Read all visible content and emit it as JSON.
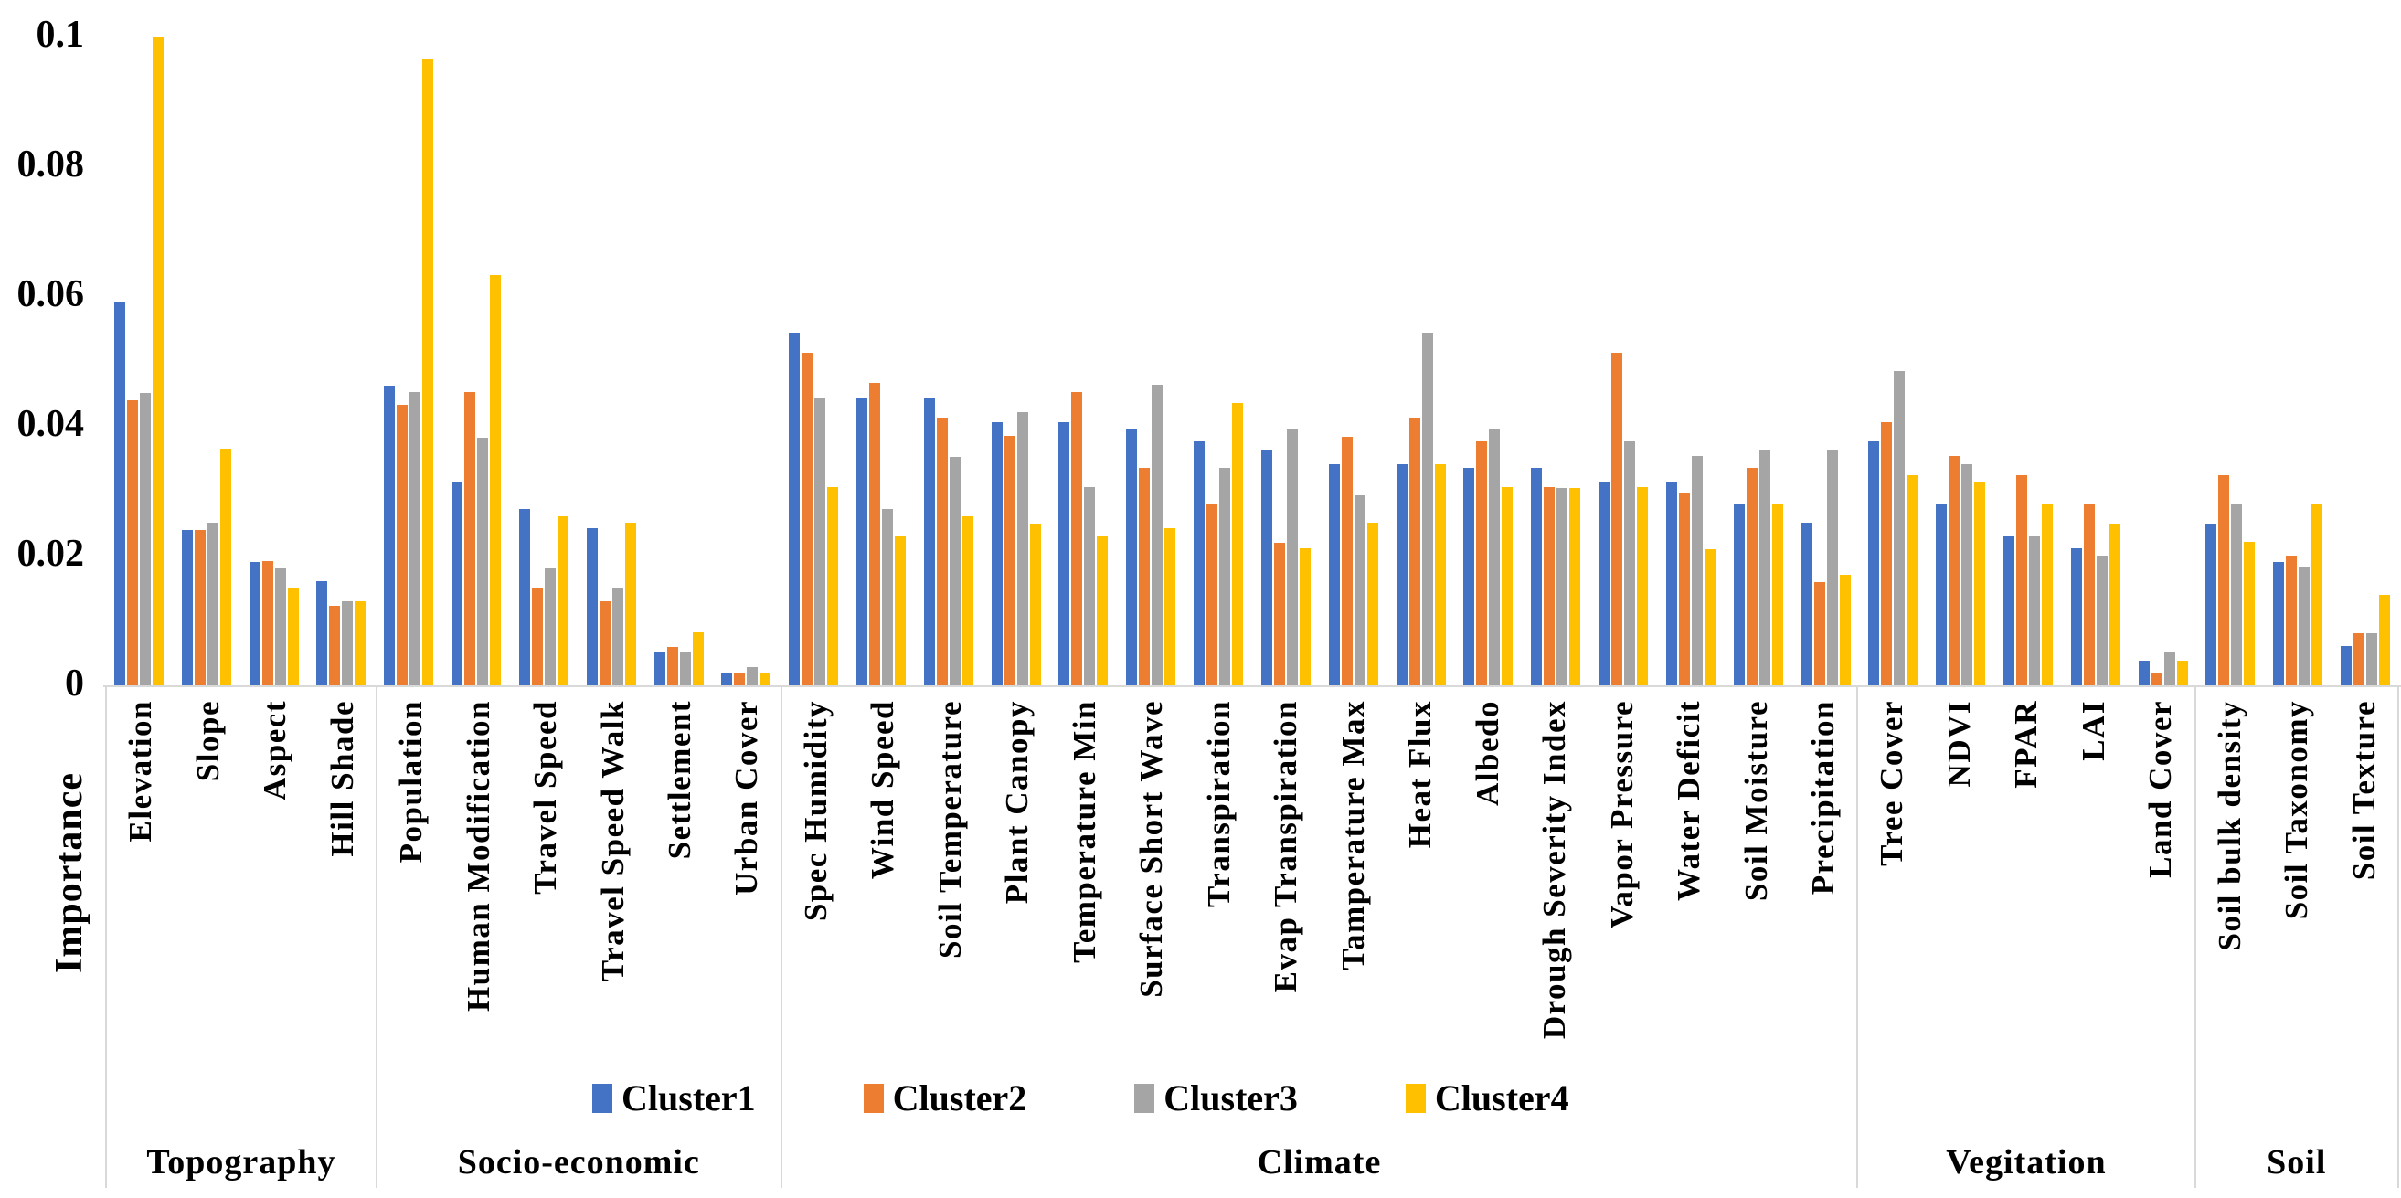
{
  "chart_data": {
    "type": "bar",
    "title": "",
    "xlabel": "",
    "ylabel": "Importance",
    "ylim": [
      0,
      0.1
    ],
    "grid": false,
    "legend_position": "bottom",
    "yticks": [
      {
        "label": "0.1",
        "value": 0.1
      },
      {
        "label": "0.08",
        "value": 0.08
      },
      {
        "label": "0.06",
        "value": 0.06
      },
      {
        "label": "0.04",
        "value": 0.04
      },
      {
        "label": "0.02",
        "value": 0.02
      },
      {
        "label": "0",
        "value": 0
      }
    ],
    "series_names": [
      "Cluster1",
      "Cluster2",
      "Cluster3",
      "Cluster4"
    ],
    "series_colors": [
      "#4472C4",
      "#ED7D31",
      "#A5A5A5",
      "#FFC000"
    ],
    "axis_line_color": "#D9D9D9",
    "groups": [
      {
        "label": "Topography",
        "variables": [
          {
            "name": "Elevation",
            "values": [
              0.059,
              0.044,
              0.045,
              0.1
            ]
          },
          {
            "name": "Slope",
            "values": [
              0.024,
              0.024,
              0.025,
              0.0365
            ]
          },
          {
            "name": "Aspect",
            "values": [
              0.019,
              0.0192,
              0.018,
              0.015
            ]
          },
          {
            "name": "Hill Shade",
            "values": [
              0.016,
              0.0122,
              0.013,
              0.013
            ]
          }
        ]
      },
      {
        "label": "Socio-economic",
        "variables": [
          {
            "name": "Population",
            "values": [
              0.0462,
              0.0432,
              0.0452,
              0.0965
            ]
          },
          {
            "name": "Human Modification",
            "values": [
              0.0313,
              0.0452,
              0.0382,
              0.0633
            ]
          },
          {
            "name": "Travel Speed",
            "values": [
              0.0272,
              0.0151,
              0.018,
              0.026
            ]
          },
          {
            "name": "Travel Speed Walk",
            "values": [
              0.0242,
              0.013,
              0.0151,
              0.025
            ]
          },
          {
            "name": "Settlement",
            "values": [
              0.0052,
              0.0059,
              0.0051,
              0.0081
            ]
          },
          {
            "name": "Urban Cover",
            "values": [
              0.002,
              0.002,
              0.0028,
              0.002
            ]
          }
        ]
      },
      {
        "label": "Climate",
        "variables": [
          {
            "name": "Spec Humidity",
            "values": [
              0.0543,
              0.0512,
              0.0442,
              0.0305
            ]
          },
          {
            "name": "Wind Speed",
            "values": [
              0.0442,
              0.0466,
              0.0272,
              0.023
            ]
          },
          {
            "name": "Soil Temperature",
            "values": [
              0.0442,
              0.0413,
              0.0352,
              0.026
            ]
          },
          {
            "name": "Plant Canopy",
            "values": [
              0.0405,
              0.0384,
              0.0421,
              0.0249
            ]
          },
          {
            "name": "Temperature Min",
            "values": [
              0.0405,
              0.0452,
              0.0305,
              0.023
            ]
          },
          {
            "name": "Surface Short Wave",
            "values": [
              0.0394,
              0.0335,
              0.0464,
              0.0242
            ]
          },
          {
            "name": "Transpiration",
            "values": [
              0.0376,
              0.028,
              0.0335,
              0.0435
            ]
          },
          {
            "name": "Evap Transpiration",
            "values": [
              0.0363,
              0.022,
              0.0394,
              0.0211
            ]
          },
          {
            "name": "Tamperature Max",
            "values": [
              0.0341,
              0.0383,
              0.0293,
              0.025
            ]
          },
          {
            "name": "Heat Flux",
            "values": [
              0.0341,
              0.0413,
              0.0543,
              0.0341
            ]
          },
          {
            "name": "Albedo",
            "values": [
              0.0335,
              0.0376,
              0.0394,
              0.0306
            ]
          },
          {
            "name": "Drough Severity Index",
            "values": [
              0.0335,
              0.0305,
              0.0304,
              0.0304
            ]
          },
          {
            "name": "Vapor Pressure",
            "values": [
              0.0313,
              0.0513,
              0.0376,
              0.0306
            ]
          },
          {
            "name": "Water Deficit",
            "values": [
              0.0313,
              0.0296,
              0.0353,
              0.021
            ]
          },
          {
            "name": "Soil Moisture",
            "values": [
              0.028,
              0.0335,
              0.0363,
              0.028
            ]
          },
          {
            "name": "Precipitation",
            "values": [
              0.025,
              0.0159,
              0.0363,
              0.017
            ]
          }
        ]
      },
      {
        "label": "Vegitation",
        "variables": [
          {
            "name": "Tree Cover",
            "values": [
              0.0376,
              0.0405,
              0.0484,
              0.0324
            ]
          },
          {
            "name": "NDVI",
            "values": [
              0.028,
              0.0353,
              0.0341,
              0.0313
            ]
          },
          {
            "name": "FPAR",
            "values": [
              0.023,
              0.0324,
              0.023,
              0.028
            ]
          },
          {
            "name": "LAI",
            "values": [
              0.0211,
              0.028,
              0.02,
              0.0249
            ]
          },
          {
            "name": "Land Cover",
            "values": [
              0.0038,
              0.002,
              0.005,
              0.0038
            ]
          }
        ]
      },
      {
        "label": "Soil",
        "variables": [
          {
            "name": "Soil bulk density",
            "values": [
              0.0249,
              0.0324,
              0.028,
              0.0221
            ]
          },
          {
            "name": "Soil Taxonomy",
            "values": [
              0.019,
              0.02,
              0.0182,
              0.028
            ]
          },
          {
            "name": "Soil Texture",
            "values": [
              0.0061,
              0.008,
              0.008,
              0.0139
            ]
          }
        ]
      }
    ]
  }
}
